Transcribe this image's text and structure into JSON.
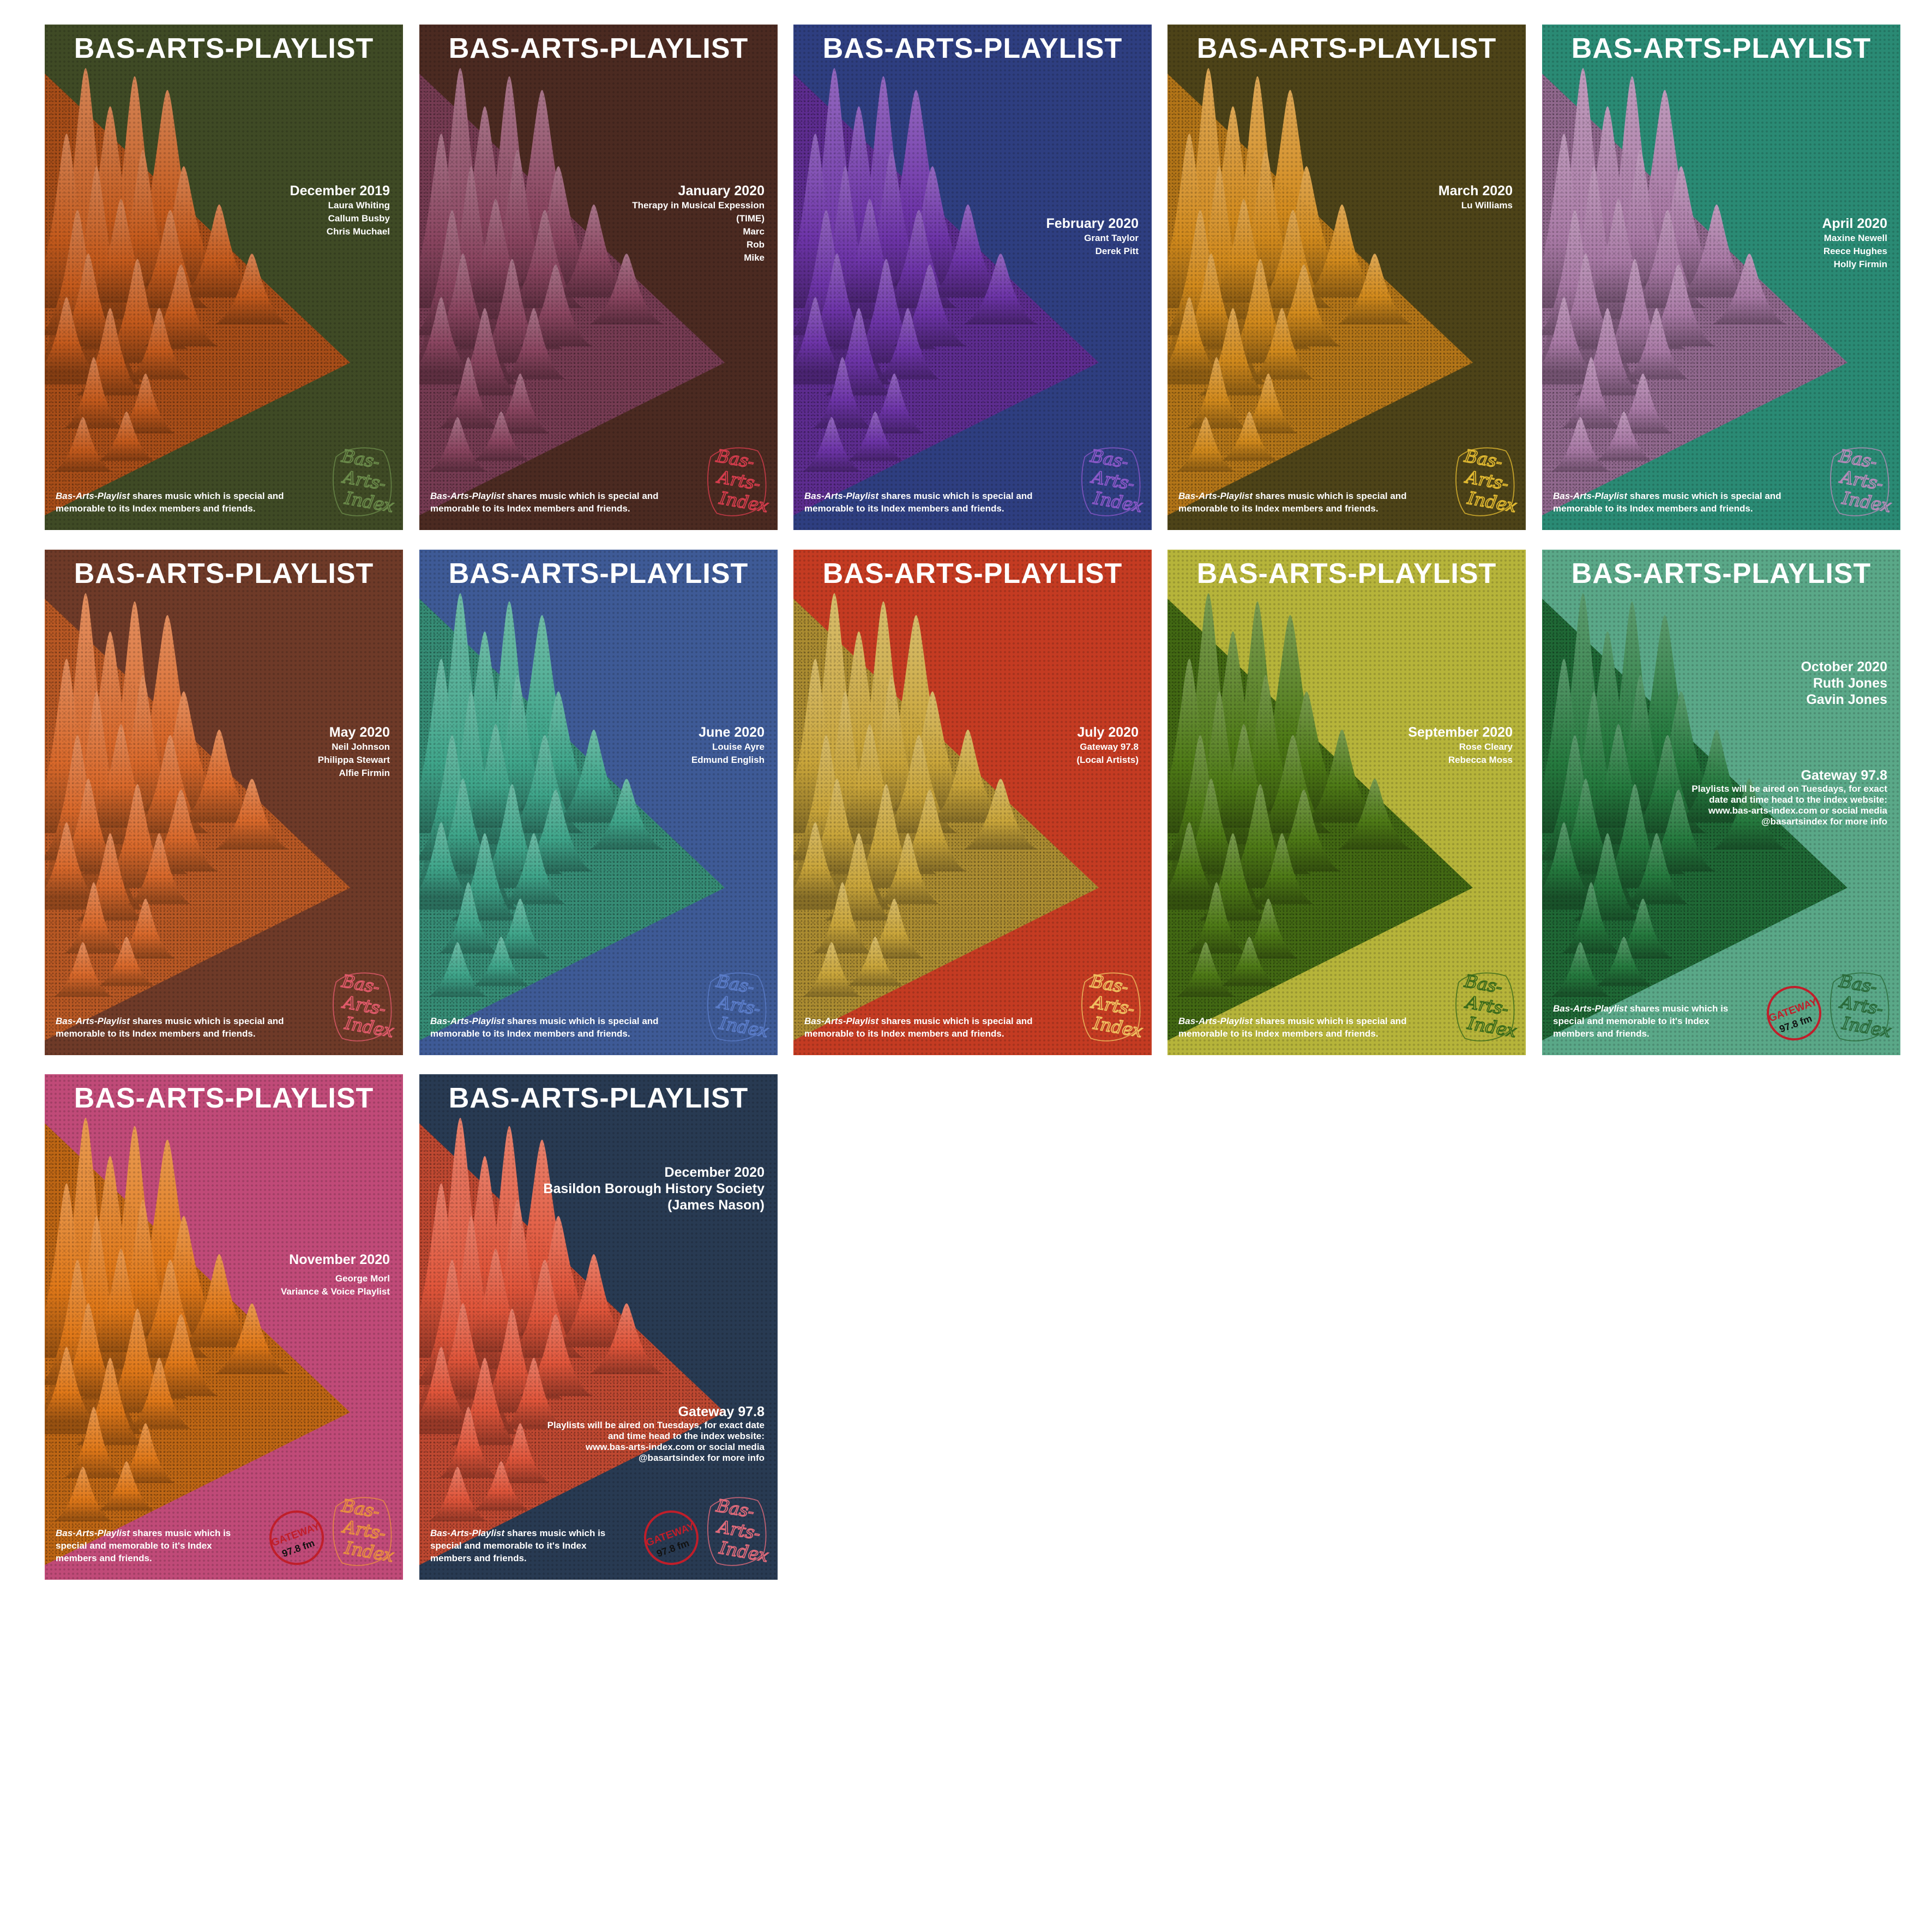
{
  "collage": {
    "posters": [
      {
        "title": "BAS-ARTS-PLAYLIST",
        "bg": "#3f4a25",
        "peak": "#c45a1c",
        "month": "December 2019",
        "lines": [
          "Laura Whiting",
          "Callum Busby",
          "Chris Muchael"
        ],
        "tag_em": "Bas-Arts-Playlist",
        "tag_rest": " shares music which is special and memorable to its Index members and friends.",
        "logo": [
          "Bas-",
          "Arts-",
          "Index"
        ],
        "logo_color": "#6a8a4a"
      },
      {
        "title": "BAS-ARTS-PLAYLIST",
        "bg": "#4b2a21",
        "peak": "#8a4560",
        "month": "January 2020",
        "lines": [
          "Therapy in Musical Expession",
          "(TIME)",
          "Marc",
          "Rob",
          "Mike"
        ],
        "tag_em": "Bas-Arts-Playlist",
        "tag_rest": " shares music which is special and memorable to its Index members and friends.",
        "logo": [
          "Bas-",
          "Arts-",
          "Index"
        ],
        "logo_color": "#d43c4c"
      },
      {
        "title": "BAS-ARTS-PLAYLIST",
        "bg": "#2e3e80",
        "peak": "#6d34a8",
        "month": "February 2020",
        "lines": [
          "Grant Taylor",
          "Derek Pitt"
        ],
        "tag_em": "Bas-Arts-Playlist",
        "tag_rest": " shares music which is special and memorable to its Index members and friends.",
        "logo": [
          "Bas-",
          "Arts-",
          "Index"
        ],
        "logo_color": "#8a58c8"
      },
      {
        "title": "BAS-ARTS-PLAYLIST",
        "bg": "#4d4318",
        "peak": "#d28a1c",
        "month": "March 2020",
        "lines": [
          "Lu Williams"
        ],
        "tag_em": "Bas-Arts-Playlist",
        "tag_rest": " shares music which is special and memorable to its Index members and friends.",
        "logo": [
          "Bas-",
          "Arts-",
          "Index"
        ],
        "logo_color": "#e0b830"
      },
      {
        "title": "BAS-ARTS-PLAYLIST",
        "bg": "#2a8a74",
        "peak": "#a97aa6",
        "month": "April 2020",
        "lines": [
          "Maxine Newell",
          "Reece Hughes",
          "Holly Firmin"
        ],
        "tag_em": "Bas-Arts-Playlist",
        "tag_rest": " shares music which is special and memorable to its Index members and friends.",
        "logo": [
          "Bas-",
          "Arts-",
          "Index"
        ],
        "logo_color": "#b48ab8"
      },
      {
        "title": "BAS-ARTS-PLAYLIST",
        "bg": "#6e3a28",
        "peak": "#d8682a",
        "month": "May 2020",
        "lines": [
          "Neil Johnson",
          "Philippa Stewart",
          "Alfie Firmin"
        ],
        "tag_em": "Bas-Arts-Playlist",
        "tag_rest": " shares music which is special and memorable to its Index members and friends.",
        "logo": [
          "Bas-",
          "Arts-",
          "Index"
        ],
        "logo_color": "#e05a6a"
      },
      {
        "title": "BAS-ARTS-PLAYLIST",
        "bg": "#3e5a96",
        "peak": "#3fa58a",
        "month": "June 2020",
        "lines": [
          "Louise Ayre",
          "Edmund English"
        ],
        "tag_em": "Bas-Arts-Playlist",
        "tag_rest": " shares music which is special and memorable to its Index members and friends.",
        "logo": [
          "Bas-",
          "Arts-",
          "Index"
        ],
        "logo_color": "#5a7cc8"
      },
      {
        "title": "BAS-ARTS-PLAYLIST",
        "bg": "#c43b22",
        "peak": "#c9a53a",
        "month": "July 2020",
        "lines": [
          "Gateway 97.8",
          "(Local Artists)"
        ],
        "tag_em": "Bas-Arts-Playlist",
        "tag_rest": " shares music which is special and memorable to its Index members and friends.",
        "logo": [
          "Bas-",
          "Arts-",
          "Index"
        ],
        "logo_color": "#f0c060"
      },
      {
        "title": "BAS-ARTS-PLAYLIST",
        "bg": "#b6b43a",
        "peak": "#4e7a16",
        "month": "September 2020",
        "lines": [
          "Rose Cleary",
          "Rebecca Moss"
        ],
        "tag_em": "Bas-Arts-Playlist",
        "tag_rest": " shares music which is special and memorable to its Index members and friends.",
        "logo": [
          "Bas-",
          "Arts-",
          "Index"
        ],
        "logo_color": "#3a6a1a"
      },
      {
        "title": "BAS-ARTS-PLAYLIST",
        "bg": "#5aa888",
        "peak": "#257a3e",
        "month": "October 2020",
        "lines": [
          "Ruth Jones",
          "Gavin Jones"
        ],
        "gateway_head": "Gateway 97.8",
        "gateway_lines": [
          "Playlists will be aired on Tuesdays, for exact",
          "date and time head to the index website:",
          "www.bas-arts-index.com or social media",
          "@basartsindex for more info"
        ],
        "tag_em": "Bas-Arts-Playlist",
        "tag_rest": " shares music which is special and memorable to it's Index members and friends.",
        "logo": [
          "Bas-",
          "Arts-",
          "Index"
        ],
        "logo_color": "#2a6a3a",
        "gw_logo": "GATEWAY",
        "gw_freq": "97.8 fm"
      },
      {
        "title": "BAS-ARTS-PLAYLIST",
        "bg": "#c04a78",
        "peak": "#e07818",
        "month": "November 2020",
        "lines": [
          "",
          "George Morl",
          "Variance & Voice Playlist"
        ],
        "tag_em": "Bas-Arts-Playlist",
        "tag_rest": " shares music which is special and memorable to it's Index members and friends.",
        "logo": [
          "Bas-",
          "Arts-",
          "Index"
        ],
        "logo_color": "#e89040",
        "gw_logo": "GATEWAY",
        "gw_freq": "97.8 fm"
      },
      {
        "title": "BAS-ARTS-PLAYLIST",
        "bg": "#283a52",
        "peak": "#e0553a",
        "month": "December 2020",
        "lines": [
          "Basildon Borough History Society",
          "(James Nason)"
        ],
        "gateway_head": "Gateway 97.8",
        "gateway_lines": [
          "Playlists will be aired on Tuesdays, for exact date",
          "and time head to the index website:",
          "www.bas-arts-index.com or social media",
          "@basartsindex for more info"
        ],
        "tag_em": "Bas-Arts-Playlist",
        "tag_rest": " shares music which is special and memorable to it's Index members and friends.",
        "logo": [
          "Bas-",
          "Arts-",
          "Index"
        ],
        "logo_color": "#e06a7a",
        "gw_logo": "GATEWAY",
        "gw_freq": "97.8 fm"
      }
    ]
  }
}
